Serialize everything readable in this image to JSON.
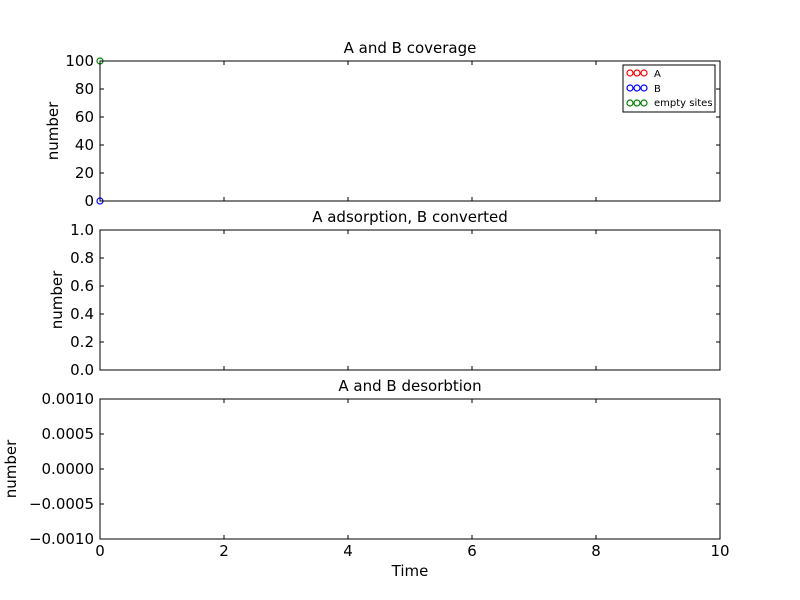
{
  "chart_data": [
    {
      "type": "scatter",
      "title": "A and B coverage",
      "xlabel": "",
      "ylabel": "number",
      "xlim": [
        0,
        10
      ],
      "ylim": [
        0,
        100
      ],
      "yticks": [
        "0",
        "20",
        "40",
        "60",
        "80",
        "100"
      ],
      "grid": false,
      "legend_position": "top-right",
      "series": [
        {
          "name": "A",
          "color": "#ff0000",
          "marker": "open-circle",
          "points": []
        },
        {
          "name": "B",
          "color": "#0000ff",
          "marker": "open-circle",
          "points": [
            [
              0,
              0
            ]
          ]
        },
        {
          "name": "empty sites",
          "color": "#008000",
          "marker": "open-circle",
          "points": [
            [
              0,
              100
            ]
          ]
        }
      ]
    },
    {
      "type": "scatter",
      "title": "A adsorption, B converted",
      "xlabel": "",
      "ylabel": "number",
      "xlim": [
        0,
        10
      ],
      "ylim": [
        0,
        1
      ],
      "yticks": [
        "0.0",
        "0.2",
        "0.4",
        "0.6",
        "0.8",
        "1.0"
      ],
      "grid": false,
      "series": []
    },
    {
      "type": "scatter",
      "title": "A and B desorbtion",
      "xlabel": "Time",
      "ylabel": "number",
      "xlim": [
        0,
        10
      ],
      "ylim": [
        -0.001,
        0.001
      ],
      "yticks": [
        "−0.0010",
        "−0.0005",
        "0.0000",
        "0.0005",
        "0.0010"
      ],
      "xticks": [
        "0",
        "2",
        "4",
        "6",
        "8",
        "10"
      ],
      "grid": false,
      "series": []
    }
  ]
}
